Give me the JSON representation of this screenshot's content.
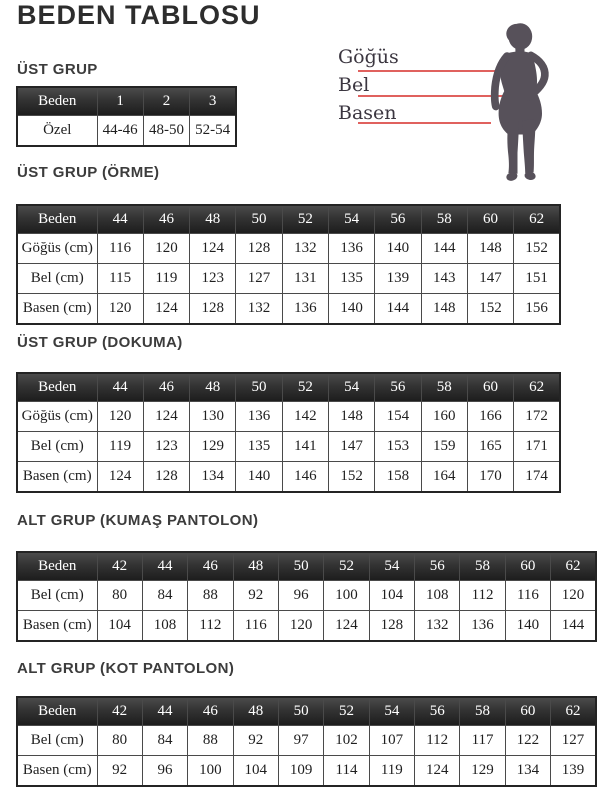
{
  "page": {
    "title": "BEDEN TABLOSU"
  },
  "figure": {
    "labels": {
      "chest": "Göğüs",
      "waist": "Bel",
      "hip": "Basen"
    },
    "line_color": "#e0615e",
    "silhouette_color": "#57515a"
  },
  "colors": {
    "header_bg_top": "#4b4b4b",
    "header_bg_bottom": "#1d1d1d",
    "header_text": "#ffffff",
    "border": "#4a4a4a",
    "heading_text": "#3c3c3c"
  },
  "sections": [
    {
      "heading": "ÜST GRUP",
      "table": {
        "header": [
          "Beden",
          "1",
          "2",
          "3"
        ],
        "rows": [
          [
            "Özel",
            "44-46",
            "48-50",
            "52-54"
          ]
        ]
      }
    },
    {
      "heading": "ÜST GRUP (ÖRME)",
      "table": {
        "header": [
          "Beden",
          "44",
          "46",
          "48",
          "50",
          "52",
          "54",
          "56",
          "58",
          "60",
          "62"
        ],
        "rows": [
          [
            "Göğüs (cm)",
            "116",
            "120",
            "124",
            "128",
            "132",
            "136",
            "140",
            "144",
            "148",
            "152"
          ],
          [
            "Bel (cm)",
            "115",
            "119",
            "123",
            "127",
            "131",
            "135",
            "139",
            "143",
            "147",
            "151"
          ],
          [
            "Basen (cm)",
            "120",
            "124",
            "128",
            "132",
            "136",
            "140",
            "144",
            "148",
            "152",
            "156"
          ]
        ]
      }
    },
    {
      "heading": "ÜST GRUP (DOKUMA)",
      "table": {
        "header": [
          "Beden",
          "44",
          "46",
          "48",
          "50",
          "52",
          "54",
          "56",
          "58",
          "60",
          "62"
        ],
        "rows": [
          [
            "Göğüs (cm)",
            "120",
            "124",
            "130",
            "136",
            "142",
            "148",
            "154",
            "160",
            "166",
            "172"
          ],
          [
            "Bel (cm)",
            "119",
            "123",
            "129",
            "135",
            "141",
            "147",
            "153",
            "159",
            "165",
            "171"
          ],
          [
            "Basen (cm)",
            "124",
            "128",
            "134",
            "140",
            "146",
            "152",
            "158",
            "164",
            "170",
            "174"
          ]
        ]
      }
    },
    {
      "heading": "ALT GRUP (KUMAŞ PANTOLON)",
      "table": {
        "header": [
          "Beden",
          "42",
          "44",
          "46",
          "48",
          "50",
          "52",
          "54",
          "56",
          "58",
          "60",
          "62"
        ],
        "rows": [
          [
            "Bel (cm)",
            "80",
            "84",
            "88",
            "92",
            "96",
            "100",
            "104",
            "108",
            "112",
            "116",
            "120"
          ],
          [
            "Basen (cm)",
            "104",
            "108",
            "112",
            "116",
            "120",
            "124",
            "128",
            "132",
            "136",
            "140",
            "144"
          ]
        ]
      }
    },
    {
      "heading": "ALT GRUP (KOT PANTOLON)",
      "table": {
        "header": [
          "Beden",
          "42",
          "44",
          "46",
          "48",
          "50",
          "52",
          "54",
          "56",
          "58",
          "60",
          "62"
        ],
        "rows": [
          [
            "Bel (cm)",
            "80",
            "84",
            "88",
            "92",
            "97",
            "102",
            "107",
            "112",
            "117",
            "122",
            "127"
          ],
          [
            "Basen (cm)",
            "92",
            "96",
            "100",
            "104",
            "109",
            "114",
            "119",
            "124",
            "129",
            "134",
            "139"
          ]
        ]
      }
    }
  ]
}
